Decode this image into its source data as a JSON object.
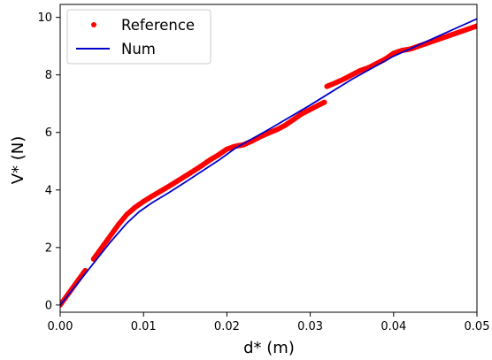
{
  "chart_data": {
    "type": "line",
    "xlabel": "d* (m)",
    "ylabel": "V* (N)",
    "xlim": [
      0.0,
      0.05
    ],
    "ylim": [
      -0.25,
      10.45
    ],
    "xticks": [
      "0.00",
      "0.01",
      "0.02",
      "0.03",
      "0.04",
      "0.05"
    ],
    "yticks": [
      "0",
      "2",
      "4",
      "6",
      "8",
      "10"
    ],
    "grid": false,
    "legend_placement": "top-left",
    "series": [
      {
        "name": "Reference",
        "style": "markers",
        "color": "#ff0000",
        "x": [
          0.0,
          0.001,
          0.002,
          0.003,
          0.004,
          0.005,
          0.006,
          0.007,
          0.008,
          0.009,
          0.01,
          0.011,
          0.012,
          0.013,
          0.014,
          0.015,
          0.016,
          0.017,
          0.018,
          0.019,
          0.02,
          0.021,
          0.022,
          0.023,
          0.024,
          0.025,
          0.026,
          0.027,
          0.028,
          0.029,
          0.03,
          0.031,
          0.0317,
          0.032,
          0.033,
          0.034,
          0.035,
          0.036,
          0.037,
          0.038,
          0.039,
          0.04,
          0.041,
          0.042,
          0.043,
          0.044,
          0.045,
          0.046,
          0.047,
          0.048,
          0.049,
          0.05
        ],
        "y": [
          0.0,
          0.4,
          0.8,
          1.2,
          1.6,
          2.0,
          2.4,
          2.8,
          3.15,
          3.4,
          3.6,
          3.78,
          3.95,
          4.12,
          4.3,
          4.48,
          4.66,
          4.85,
          5.05,
          5.22,
          5.42,
          5.52,
          5.57,
          5.7,
          5.85,
          5.98,
          6.1,
          6.25,
          6.45,
          6.65,
          6.8,
          6.95,
          7.05,
          7.6,
          7.72,
          7.85,
          8.0,
          8.15,
          8.25,
          8.4,
          8.55,
          8.75,
          8.85,
          8.9,
          9.0,
          9.1,
          9.2,
          9.3,
          9.4,
          9.5,
          9.6,
          9.7
        ]
      },
      {
        "name": "Num",
        "style": "line",
        "color": "#0000cc",
        "x": [
          0.0,
          0.002,
          0.004,
          0.006,
          0.008,
          0.0095,
          0.011,
          0.013,
          0.015,
          0.017,
          0.019,
          0.021,
          0.025,
          0.03,
          0.035,
          0.04,
          0.045,
          0.05
        ],
        "y": [
          0.0,
          0.72,
          1.45,
          2.18,
          2.85,
          3.25,
          3.55,
          3.9,
          4.27,
          4.65,
          5.03,
          5.45,
          6.1,
          6.95,
          7.85,
          8.65,
          9.3,
          9.95
        ]
      }
    ]
  }
}
